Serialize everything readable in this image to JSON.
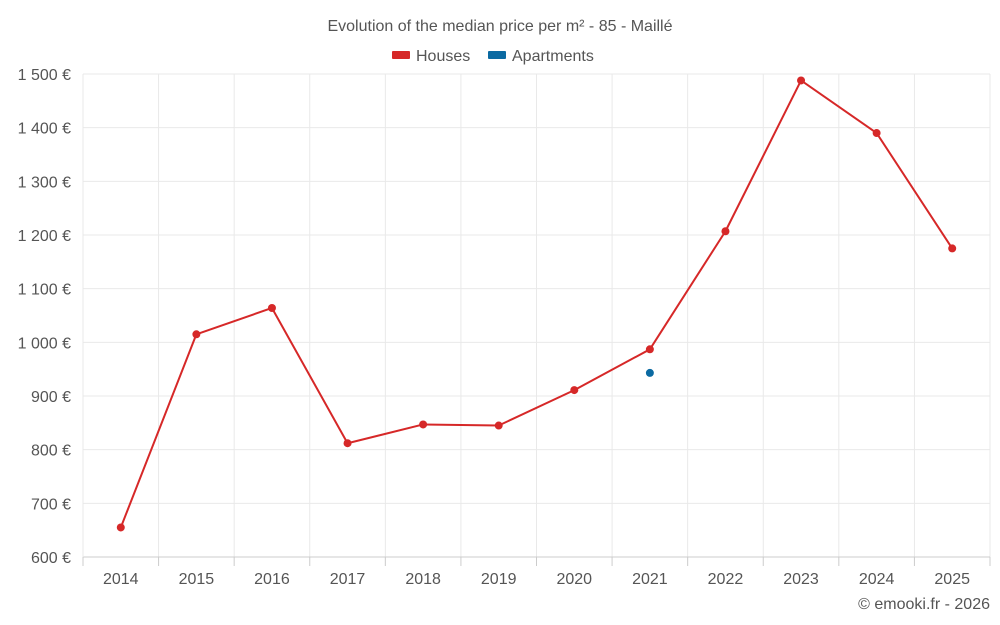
{
  "chart_data": {
    "type": "line",
    "title": "Evolution of the median price per m² - 85 - Maillé",
    "categories": [
      "2014",
      "2015",
      "2016",
      "2017",
      "2018",
      "2019",
      "2020",
      "2021",
      "2022",
      "2023",
      "2024",
      "2025"
    ],
    "series": [
      {
        "name": "Houses",
        "color": "#d62828",
        "values": [
          655,
          1015,
          1064,
          812,
          847,
          845,
          911,
          987,
          1207,
          1488,
          1390,
          1175
        ]
      },
      {
        "name": "Apartments",
        "color": "#0b6aa2",
        "values": [
          null,
          null,
          null,
          null,
          null,
          null,
          null,
          943,
          null,
          null,
          null,
          null
        ]
      }
    ],
    "y_ticks": [
      600,
      700,
      800,
      900,
      1000,
      1100,
      1200,
      1300,
      1400,
      1500
    ],
    "y_tick_labels": [
      "600 €",
      "700 €",
      "800 €",
      "900 €",
      "1 000 €",
      "1 100 €",
      "1 200 €",
      "1 300 €",
      "1 400 €",
      "1 500 €"
    ],
    "ylim": [
      600,
      1500
    ],
    "xlabel": "",
    "ylabel": "",
    "legend_position": "top-center",
    "grid": true
  },
  "credit": "© emooki.fr - 2026"
}
